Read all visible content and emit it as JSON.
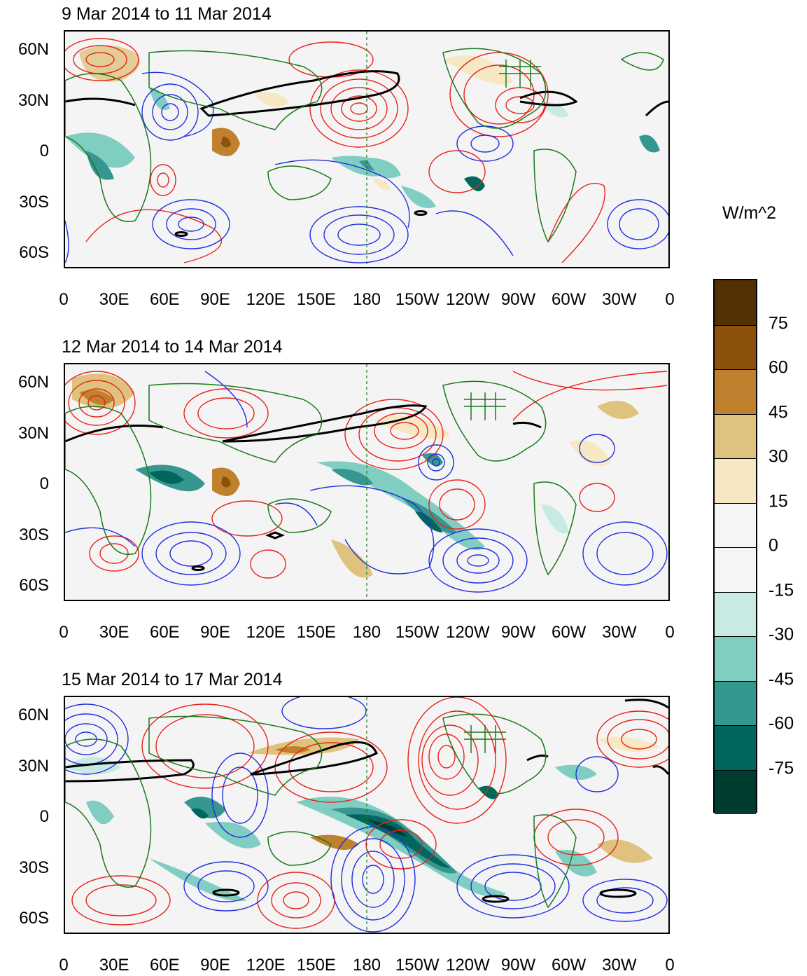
{
  "units": "W/m^2",
  "panels": [
    {
      "title": "9 Mar 2014 to 11 Mar 2014"
    },
    {
      "title": "12 Mar 2014 to 14 Mar 2014"
    },
    {
      "title": "15 Mar 2014 to 17 Mar 2014"
    }
  ],
  "lat_ticks": [
    "60N",
    "30N",
    "0",
    "30S",
    "60S"
  ],
  "lon_ticks": [
    "0",
    "30E",
    "60E",
    "90E",
    "120E",
    "150E",
    "180",
    "150W",
    "120W",
    "90W",
    "60W",
    "30W",
    "0"
  ],
  "colorbar": {
    "labels": [
      "75",
      "60",
      "45",
      "30",
      "15",
      "0",
      "-15",
      "-30",
      "-45",
      "-60",
      "-75"
    ],
    "colors": [
      "#543005",
      "#8c510a",
      "#bf812d",
      "#dfc27d",
      "#f6e8c3",
      "#f5f5f5",
      "#f5f5f5",
      "#c7eae5",
      "#80cdc1",
      "#35978f",
      "#01665e",
      "#003c30"
    ]
  },
  "colors": {
    "positive_contour": "#e8231a",
    "negative_contour": "#1f2fe0",
    "zero_contour": "#000000",
    "coastline": "#1a7a1a"
  }
}
